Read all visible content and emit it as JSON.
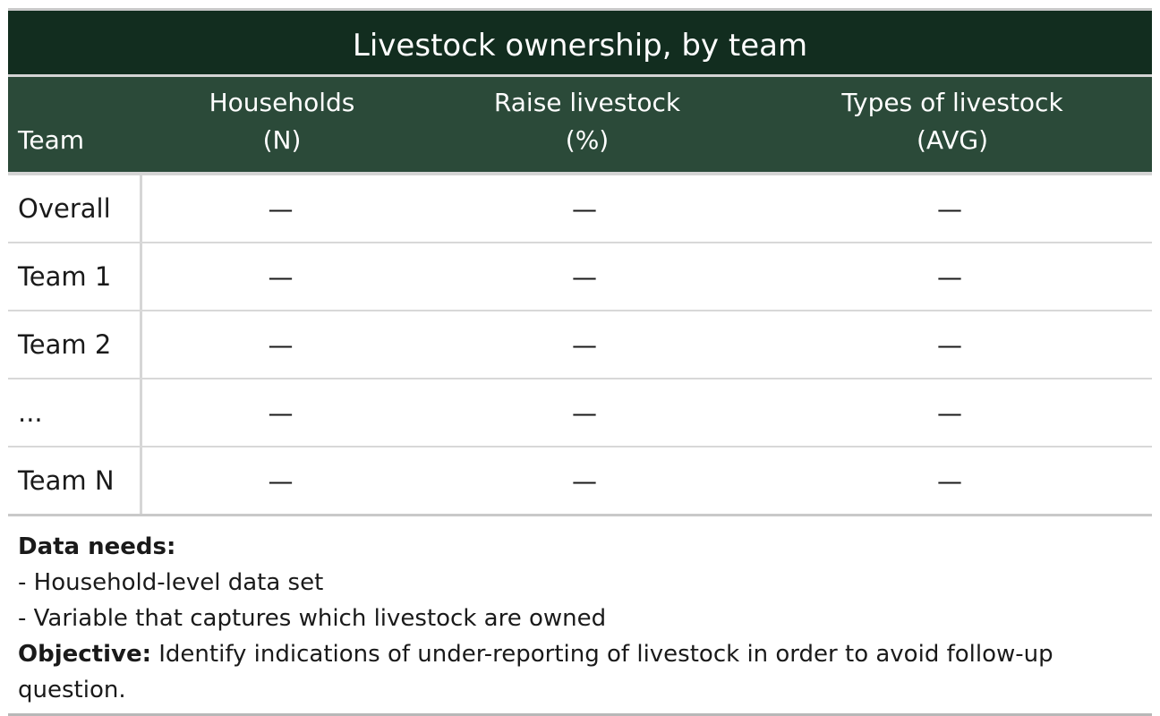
{
  "table": {
    "title": "Livestock ownership, by team",
    "headers": {
      "team": "Team",
      "households_line1": "Households",
      "households_line2": "(N)",
      "raise_line1": "Raise livestock",
      "raise_line2": "(%)",
      "types_line1": "Types of livestock",
      "types_line2": "(AVG)"
    },
    "rows": [
      {
        "team": "Overall",
        "households": "—",
        "raise": "—",
        "types": "—"
      },
      {
        "team": "Team 1",
        "households": "—",
        "raise": "—",
        "types": "—"
      },
      {
        "team": "Team 2",
        "households": "—",
        "raise": "—",
        "types": "—"
      },
      {
        "team": "...",
        "households": "—",
        "raise": "—",
        "types": "—"
      },
      {
        "team": "Team N",
        "households": "—",
        "raise": "—",
        "types": "—"
      }
    ]
  },
  "notes": {
    "data_needs_label": "Data needs:",
    "data_needs_items": [
      "- Household-level data set",
      "- Variable that captures which livestock are owned"
    ],
    "objective_label": "Objective:",
    "objective_text": " Identify indications of under-reporting of livestock in order to avoid follow-up question."
  },
  "colors": {
    "title_background": "#122d1f",
    "header_background": "#2b4a39",
    "header_text": "#ffffff",
    "divider": "#d4d4d4"
  }
}
